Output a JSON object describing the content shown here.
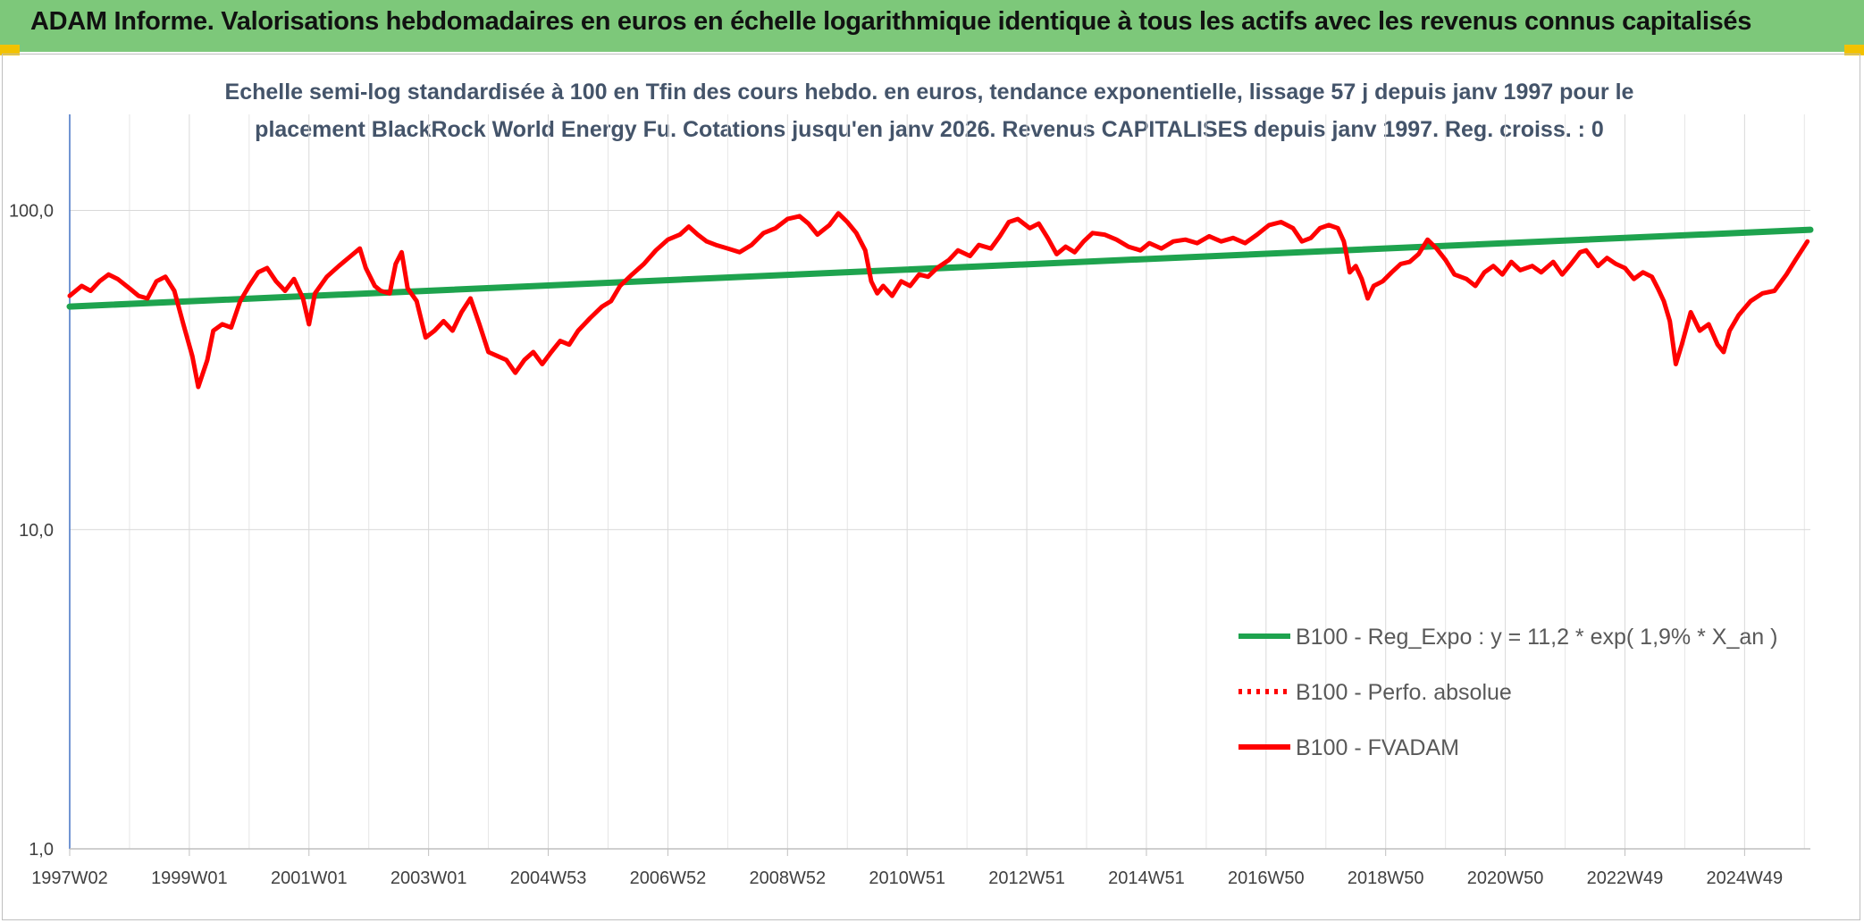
{
  "header": {
    "title": "ADAM Informe. Valorisations hebdomadaires en euros en échelle logarithmique identique à tous les actifs avec les revenus connus capitalisés"
  },
  "chart_data": {
    "type": "line",
    "title_line1": "Echelle semi-log standardisée à 100 en Tfin des cours hebdo. en euros, tendance exponentielle, lissage 57 j depuis janv 1997 pour le",
    "title_line2": "placement BlackRock World Energy Fu. Cotations jusqu'en janv 2026. Revenus CAPITALISES depuis janv 1997. Reg. croiss. : 0",
    "y_scale": "log",
    "ylim": [
      1,
      200
    ],
    "y_ticks": [
      {
        "value": 1,
        "label": "1,0"
      },
      {
        "value": 10,
        "label": "10,0"
      },
      {
        "value": 100,
        "label": "100,0"
      }
    ],
    "x_unit": "year",
    "xlim": [
      1997.0,
      2026.1
    ],
    "x_ticks": [
      {
        "x": 1997.0,
        "label": "1997W02"
      },
      {
        "x": 1999.0,
        "label": "1999W01"
      },
      {
        "x": 2001.0,
        "label": "2001W01"
      },
      {
        "x": 2003.0,
        "label": "2003W01"
      },
      {
        "x": 2005.0,
        "label": "2004W53"
      },
      {
        "x": 2007.0,
        "label": "2006W52"
      },
      {
        "x": 2009.0,
        "label": "2008W52"
      },
      {
        "x": 2011.0,
        "label": "2010W51"
      },
      {
        "x": 2013.0,
        "label": "2012W51"
      },
      {
        "x": 2015.0,
        "label": "2014W51"
      },
      {
        "x": 2017.0,
        "label": "2016W50"
      },
      {
        "x": 2019.0,
        "label": "2018W50"
      },
      {
        "x": 2021.0,
        "label": "2020W50"
      },
      {
        "x": 2023.0,
        "label": "2022W49"
      },
      {
        "x": 2025.0,
        "label": "2024W49"
      }
    ],
    "grid": true,
    "legend_position": "bottom-right",
    "series": [
      {
        "name": "B100 - Reg_Expo : y = 11,2 * exp( 1,9% * X_an )",
        "color": "#1ea34e",
        "style": "solid",
        "points": [
          [
            1997.0,
            50.0
          ],
          [
            2026.1,
            87.0
          ]
        ]
      },
      {
        "name": "B100 - Perfo. absolue",
        "color": "#ff0000",
        "style": "dotted",
        "points": []
      },
      {
        "name": "B100 - FVADAM",
        "color": "#ff0000",
        "style": "solid",
        "points": [
          [
            1997.0,
            54
          ],
          [
            1997.2,
            58
          ],
          [
            1997.35,
            56
          ],
          [
            1997.5,
            60
          ],
          [
            1997.65,
            63
          ],
          [
            1997.8,
            61
          ],
          [
            1998.0,
            57
          ],
          [
            1998.15,
            54
          ],
          [
            1998.3,
            53
          ],
          [
            1998.45,
            60
          ],
          [
            1998.6,
            62
          ],
          [
            1998.75,
            56
          ],
          [
            1998.9,
            44
          ],
          [
            1999.05,
            35
          ],
          [
            1999.15,
            28
          ],
          [
            1999.3,
            34
          ],
          [
            1999.4,
            42
          ],
          [
            1999.55,
            44
          ],
          [
            1999.7,
            43
          ],
          [
            1999.85,
            52
          ],
          [
            2000.0,
            58
          ],
          [
            2000.15,
            64
          ],
          [
            2000.3,
            66
          ],
          [
            2000.45,
            60
          ],
          [
            2000.6,
            56
          ],
          [
            2000.75,
            61
          ],
          [
            2000.9,
            53
          ],
          [
            2001.0,
            44
          ],
          [
            2001.1,
            55
          ],
          [
            2001.3,
            62
          ],
          [
            2001.5,
            67
          ],
          [
            2001.7,
            72
          ],
          [
            2001.85,
            76
          ],
          [
            2001.95,
            66
          ],
          [
            2002.1,
            58
          ],
          [
            2002.2,
            56
          ],
          [
            2002.35,
            55
          ],
          [
            2002.45,
            68
          ],
          [
            2002.55,
            74
          ],
          [
            2002.65,
            57
          ],
          [
            2002.8,
            52
          ],
          [
            2002.95,
            40
          ],
          [
            2003.1,
            42
          ],
          [
            2003.25,
            45
          ],
          [
            2003.4,
            42
          ],
          [
            2003.55,
            48
          ],
          [
            2003.7,
            53
          ],
          [
            2003.85,
            44
          ],
          [
            2004.0,
            36
          ],
          [
            2004.15,
            35
          ],
          [
            2004.3,
            34
          ],
          [
            2004.45,
            31
          ],
          [
            2004.6,
            34
          ],
          [
            2004.75,
            36
          ],
          [
            2004.9,
            33
          ],
          [
            2005.05,
            36
          ],
          [
            2005.2,
            39
          ],
          [
            2005.35,
            38
          ],
          [
            2005.5,
            42
          ],
          [
            2005.7,
            46
          ],
          [
            2005.9,
            50
          ],
          [
            2006.05,
            52
          ],
          [
            2006.2,
            58
          ],
          [
            2006.4,
            63
          ],
          [
            2006.6,
            68
          ],
          [
            2006.8,
            75
          ],
          [
            2007.0,
            81
          ],
          [
            2007.2,
            84
          ],
          [
            2007.35,
            89
          ],
          [
            2007.5,
            84
          ],
          [
            2007.65,
            80
          ],
          [
            2007.8,
            78
          ],
          [
            2008.0,
            76
          ],
          [
            2008.2,
            74
          ],
          [
            2008.4,
            78
          ],
          [
            2008.6,
            85
          ],
          [
            2008.8,
            88
          ],
          [
            2009.0,
            94
          ],
          [
            2009.2,
            96
          ],
          [
            2009.35,
            91
          ],
          [
            2009.5,
            84
          ],
          [
            2009.7,
            90
          ],
          [
            2009.85,
            98
          ],
          [
            2010.0,
            92
          ],
          [
            2010.15,
            85
          ],
          [
            2010.3,
            75
          ],
          [
            2010.4,
            60
          ],
          [
            2010.5,
            55
          ],
          [
            2010.6,
            58
          ],
          [
            2010.75,
            54
          ],
          [
            2010.9,
            60
          ],
          [
            2011.05,
            58
          ],
          [
            2011.2,
            63
          ],
          [
            2011.35,
            62
          ],
          [
            2011.5,
            66
          ],
          [
            2011.7,
            70
          ],
          [
            2011.85,
            75
          ],
          [
            2012.05,
            72
          ],
          [
            2012.2,
            78
          ],
          [
            2012.4,
            76
          ],
          [
            2012.55,
            83
          ],
          [
            2012.7,
            92
          ],
          [
            2012.85,
            94
          ],
          [
            2013.05,
            88
          ],
          [
            2013.2,
            91
          ],
          [
            2013.35,
            82
          ],
          [
            2013.5,
            73
          ],
          [
            2013.65,
            77
          ],
          [
            2013.8,
            74
          ],
          [
            2013.95,
            80
          ],
          [
            2014.1,
            85
          ],
          [
            2014.3,
            84
          ],
          [
            2014.5,
            81
          ],
          [
            2014.7,
            77
          ],
          [
            2014.9,
            75
          ],
          [
            2015.05,
            79
          ],
          [
            2015.25,
            76
          ],
          [
            2015.45,
            80
          ],
          [
            2015.65,
            81
          ],
          [
            2015.85,
            79
          ],
          [
            2016.05,
            83
          ],
          [
            2016.25,
            80
          ],
          [
            2016.45,
            82
          ],
          [
            2016.65,
            79
          ],
          [
            2016.85,
            84
          ],
          [
            2017.05,
            90
          ],
          [
            2017.25,
            92
          ],
          [
            2017.45,
            88
          ],
          [
            2017.6,
            80
          ],
          [
            2017.75,
            82
          ],
          [
            2017.9,
            88
          ],
          [
            2018.05,
            90
          ],
          [
            2018.2,
            88
          ],
          [
            2018.3,
            80
          ],
          [
            2018.35,
            72
          ],
          [
            2018.4,
            64
          ],
          [
            2018.5,
            67
          ],
          [
            2018.6,
            61
          ],
          [
            2018.7,
            53
          ],
          [
            2018.8,
            58
          ],
          [
            2018.95,
            60
          ],
          [
            2019.1,
            64
          ],
          [
            2019.25,
            68
          ],
          [
            2019.4,
            69
          ],
          [
            2019.55,
            73
          ],
          [
            2019.7,
            81
          ],
          [
            2019.85,
            76
          ],
          [
            2020.0,
            70
          ],
          [
            2020.15,
            63
          ],
          [
            2020.35,
            61
          ],
          [
            2020.5,
            58
          ],
          [
            2020.65,
            64
          ],
          [
            2020.8,
            67
          ],
          [
            2020.95,
            63
          ],
          [
            2021.1,
            69
          ],
          [
            2021.25,
            65
          ],
          [
            2021.45,
            67
          ],
          [
            2021.6,
            64
          ],
          [
            2021.8,
            69
          ],
          [
            2021.95,
            63
          ],
          [
            2022.1,
            68
          ],
          [
            2022.25,
            74
          ],
          [
            2022.35,
            75
          ],
          [
            2022.45,
            71
          ],
          [
            2022.55,
            67
          ],
          [
            2022.7,
            71
          ],
          [
            2022.85,
            68
          ],
          [
            2023.0,
            66
          ],
          [
            2023.15,
            61
          ],
          [
            2023.3,
            64
          ],
          [
            2023.45,
            62
          ],
          [
            2023.55,
            57
          ],
          [
            2023.65,
            52
          ],
          [
            2023.75,
            45
          ],
          [
            2023.85,
            33
          ],
          [
            2023.95,
            38
          ],
          [
            2024.1,
            48
          ],
          [
            2024.25,
            42
          ],
          [
            2024.4,
            44
          ],
          [
            2024.55,
            38
          ],
          [
            2024.65,
            36
          ],
          [
            2024.75,
            42
          ],
          [
            2024.9,
            47
          ],
          [
            2025.1,
            52
          ],
          [
            2025.3,
            55
          ],
          [
            2025.5,
            56
          ],
          [
            2025.7,
            63
          ],
          [
            2025.85,
            70
          ],
          [
            2026.05,
            80
          ]
        ]
      }
    ]
  }
}
